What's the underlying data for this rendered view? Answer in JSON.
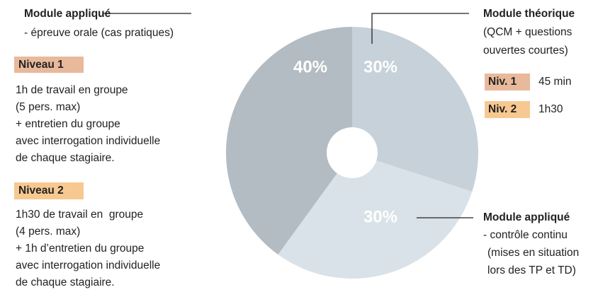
{
  "chart_data": {
    "type": "pie",
    "values": [
      30,
      30,
      40
    ],
    "value_labels": [
      "30%",
      "30%",
      "40%"
    ],
    "colors": [
      "#c6d1d9",
      "#d9e2e8",
      "#b3bcc3"
    ],
    "annotations": [
      {
        "title": "Module théorique",
        "lines": [
          "(QCM + questions",
          "ouvertes courtes)"
        ],
        "levels": [
          {
            "label": "Niv. 1",
            "text": "45 min"
          },
          {
            "label": "Niv. 2",
            "text": "1h30"
          }
        ]
      },
      {
        "title": "Module appliqué",
        "lines": [
          "- contrôle continu",
          "(mises en situation",
          "lors des TP et TD)"
        ]
      },
      {
        "title": "Module appliqué",
        "lines": [
          "- épreuve orale (cas pratiques)"
        ],
        "levels": [
          {
            "label": "Niveau 1",
            "lines": [
              "1h de travail en groupe",
              "(5 pers. max)",
              "+ entretien du groupe",
              "avec interrogation individuelle",
              "de chaque stagiaire."
            ]
          },
          {
            "label": "Niveau 2",
            "lines": [
              "1h30 de travail en  groupe",
              "(4 pers. max)",
              "+ 1h d’entretien du groupe",
              "avec interrogation individuelle",
              "de chaque stagiaire."
            ]
          }
        ]
      }
    ]
  }
}
